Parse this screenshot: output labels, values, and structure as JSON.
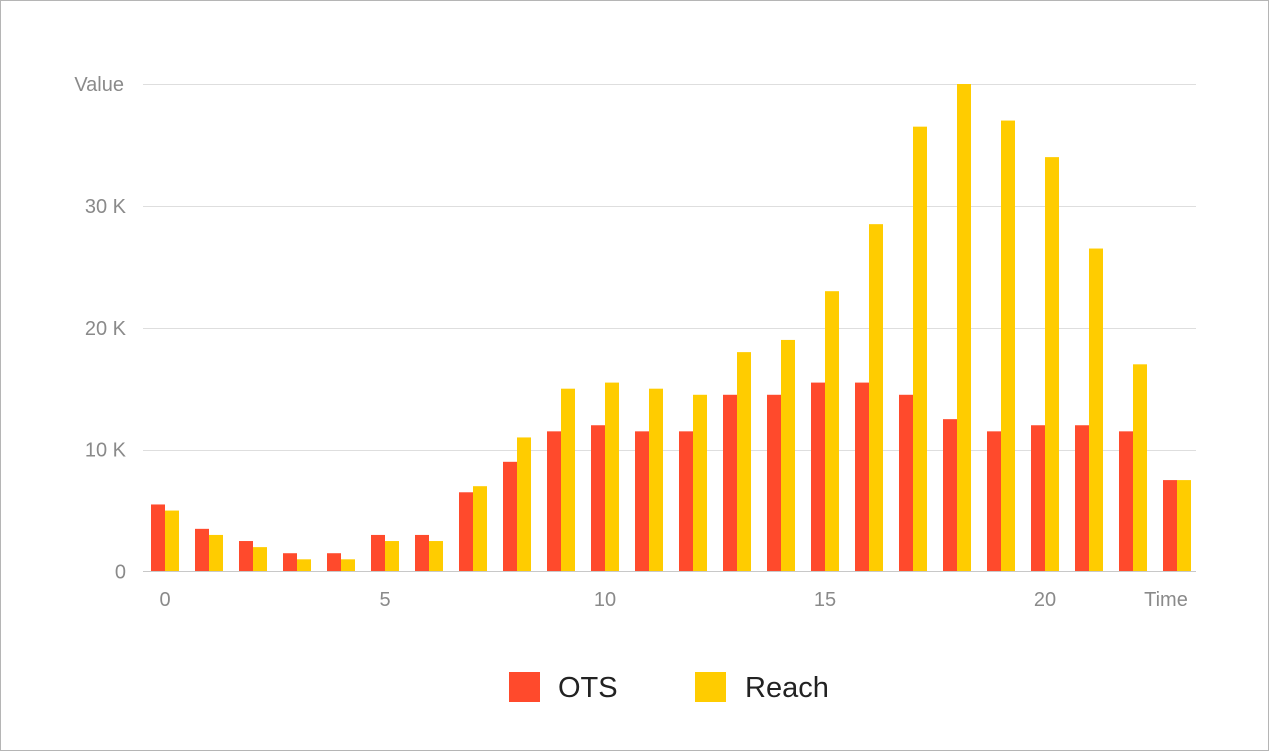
{
  "chart_data": {
    "type": "bar",
    "xlabel": "Time",
    "ylabel": "Value",
    "x": [
      0,
      1,
      2,
      3,
      4,
      5,
      6,
      7,
      8,
      9,
      10,
      11,
      12,
      13,
      14,
      15,
      16,
      17,
      18,
      19,
      20,
      21,
      22
    ],
    "xticks": [
      0,
      5,
      10,
      15,
      20
    ],
    "xtick_labels": [
      "0",
      "5",
      "10",
      "15",
      "20"
    ],
    "ylim": [
      0,
      40000
    ],
    "yticks": [
      0,
      10000,
      20000,
      30000
    ],
    "ytick_labels": [
      "0",
      "10 K",
      "20 K",
      "30 K"
    ],
    "grid": true,
    "legend_position": "bottom",
    "series": [
      {
        "name": "OTS",
        "color": "#ff4a2c",
        "values": [
          5500,
          3500,
          2500,
          1500,
          1500,
          3000,
          3000,
          6500,
          9000,
          11500,
          12000,
          11500,
          11500,
          14500,
          14500,
          15500,
          15500,
          14500,
          12500,
          11500,
          12000,
          12000,
          11500
        ]
      },
      {
        "name": "Reach",
        "color": "#ffcc00",
        "values": [
          5000,
          3000,
          2000,
          1000,
          1000,
          2500,
          2500,
          7000,
          11000,
          15000,
          15500,
          15000,
          14500,
          18000,
          19000,
          23000,
          28500,
          36500,
          40000,
          37000,
          34000,
          26500,
          17000
        ]
      }
    ],
    "extra_ots_last": 7500,
    "extra_reach_last": 7500
  }
}
